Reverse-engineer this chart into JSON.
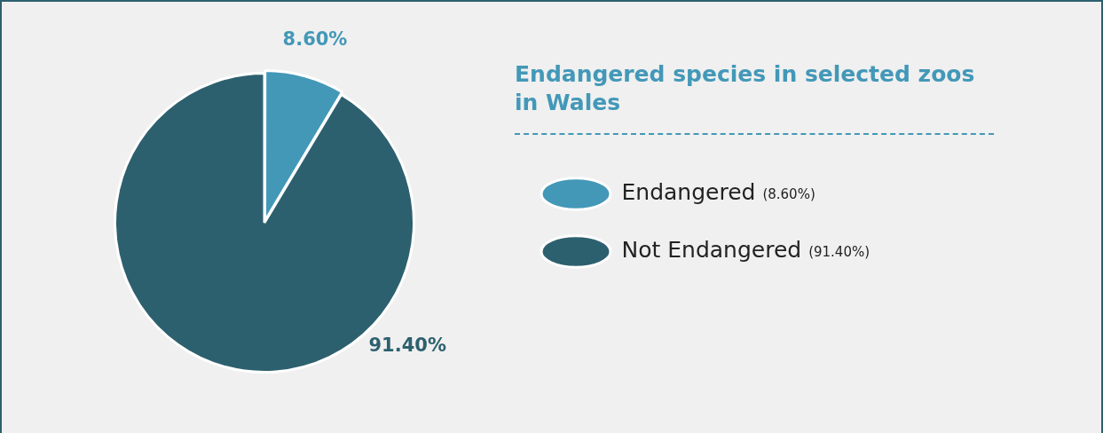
{
  "chart_data": {
    "type": "pie",
    "title": "Endangered species in selected zoos in Wales",
    "categories": [
      "Endangered",
      "Not Endangered"
    ],
    "values": [
      8.6,
      91.4
    ],
    "colors": [
      "#4398b8",
      "#2d606e"
    ],
    "value_labels": [
      "8.60%",
      "91.40%"
    ],
    "annotations": [
      "(8.60%)",
      "(91.40%)"
    ],
    "legend": "right"
  }
}
